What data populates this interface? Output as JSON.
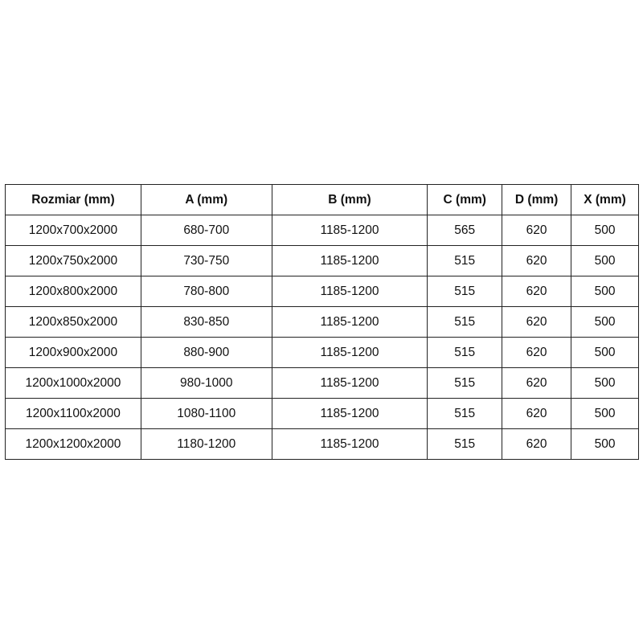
{
  "table": {
    "headers": [
      "Rozmiar (mm)",
      "A (mm)",
      "B (mm)",
      "C (mm)",
      "D (mm)",
      "X (mm)"
    ],
    "rows": [
      [
        "1200x700x2000",
        "680-700",
        "1185-1200",
        "565",
        "620",
        "500"
      ],
      [
        "1200x750x2000",
        "730-750",
        "1185-1200",
        "515",
        "620",
        "500"
      ],
      [
        "1200x800x2000",
        "780-800",
        "1185-1200",
        "515",
        "620",
        "500"
      ],
      [
        "1200x850x2000",
        "830-850",
        "1185-1200",
        "515",
        "620",
        "500"
      ],
      [
        "1200x900x2000",
        "880-900",
        "1185-1200",
        "515",
        "620",
        "500"
      ],
      [
        "1200x1000x2000",
        "980-1000",
        "1185-1200",
        "515",
        "620",
        "500"
      ],
      [
        "1200x1100x2000",
        "1080-1100",
        "1185-1200",
        "515",
        "620",
        "500"
      ],
      [
        "1200x1200x2000",
        "1180-1200",
        "1185-1200",
        "515",
        "620",
        "500"
      ]
    ]
  }
}
